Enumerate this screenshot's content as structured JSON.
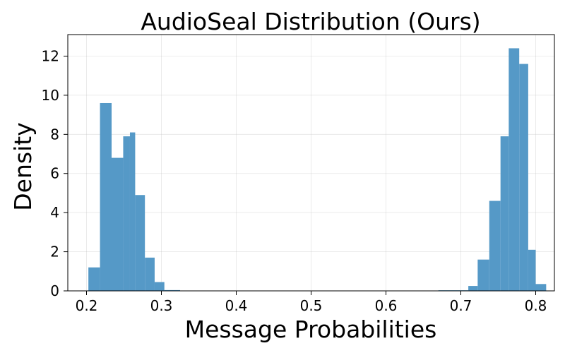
{
  "chart_data": {
    "type": "bar",
    "title": "AudioSeal Distribution (Ours)",
    "xlabel": "Message Probabilities",
    "ylabel": "Density",
    "xlim": [
      0.175,
      0.825
    ],
    "ylim": [
      0,
      13.1
    ],
    "xticks": [
      0.2,
      0.3,
      0.4,
      0.5,
      0.6,
      0.7,
      0.8
    ],
    "xtick_labels": [
      "0.2",
      "0.3",
      "0.4",
      "0.5",
      "0.6",
      "0.7",
      "0.8"
    ],
    "yticks": [
      0,
      2,
      4,
      6,
      8,
      10,
      12
    ],
    "ytick_labels": [
      "0",
      "2",
      "4",
      "6",
      "8",
      "10",
      "12"
    ],
    "grid": true,
    "bar_color": "#5599c7",
    "bins": [
      {
        "x0": 0.2025,
        "x1": 0.218,
        "value": 1.2
      },
      {
        "x0": 0.218,
        "x1": 0.2335,
        "value": 9.6
      },
      {
        "x0": 0.2335,
        "x1": 0.249,
        "value": 6.8
      },
      {
        "x0": 0.249,
        "x1": 0.258,
        "value": 7.9
      },
      {
        "x0": 0.258,
        "x1": 0.265,
        "value": 8.1
      },
      {
        "x0": 0.265,
        "x1": 0.278,
        "value": 4.9
      },
      {
        "x0": 0.278,
        "x1": 0.291,
        "value": 1.7
      },
      {
        "x0": 0.291,
        "x1": 0.304,
        "value": 0.45
      },
      {
        "x0": 0.304,
        "x1": 0.325,
        "value": 0.04
      },
      {
        "x0": 0.67,
        "x1": 0.71,
        "value": 0.03
      },
      {
        "x0": 0.71,
        "x1": 0.7225,
        "value": 0.25
      },
      {
        "x0": 0.7225,
        "x1": 0.738,
        "value": 1.6
      },
      {
        "x0": 0.738,
        "x1": 0.753,
        "value": 4.6
      },
      {
        "x0": 0.753,
        "x1": 0.764,
        "value": 7.9
      },
      {
        "x0": 0.764,
        "x1": 0.778,
        "value": 12.4
      },
      {
        "x0": 0.778,
        "x1": 0.79,
        "value": 11.6
      },
      {
        "x0": 0.79,
        "x1": 0.8,
        "value": 2.1
      },
      {
        "x0": 0.8,
        "x1": 0.814,
        "value": 0.35
      }
    ]
  }
}
